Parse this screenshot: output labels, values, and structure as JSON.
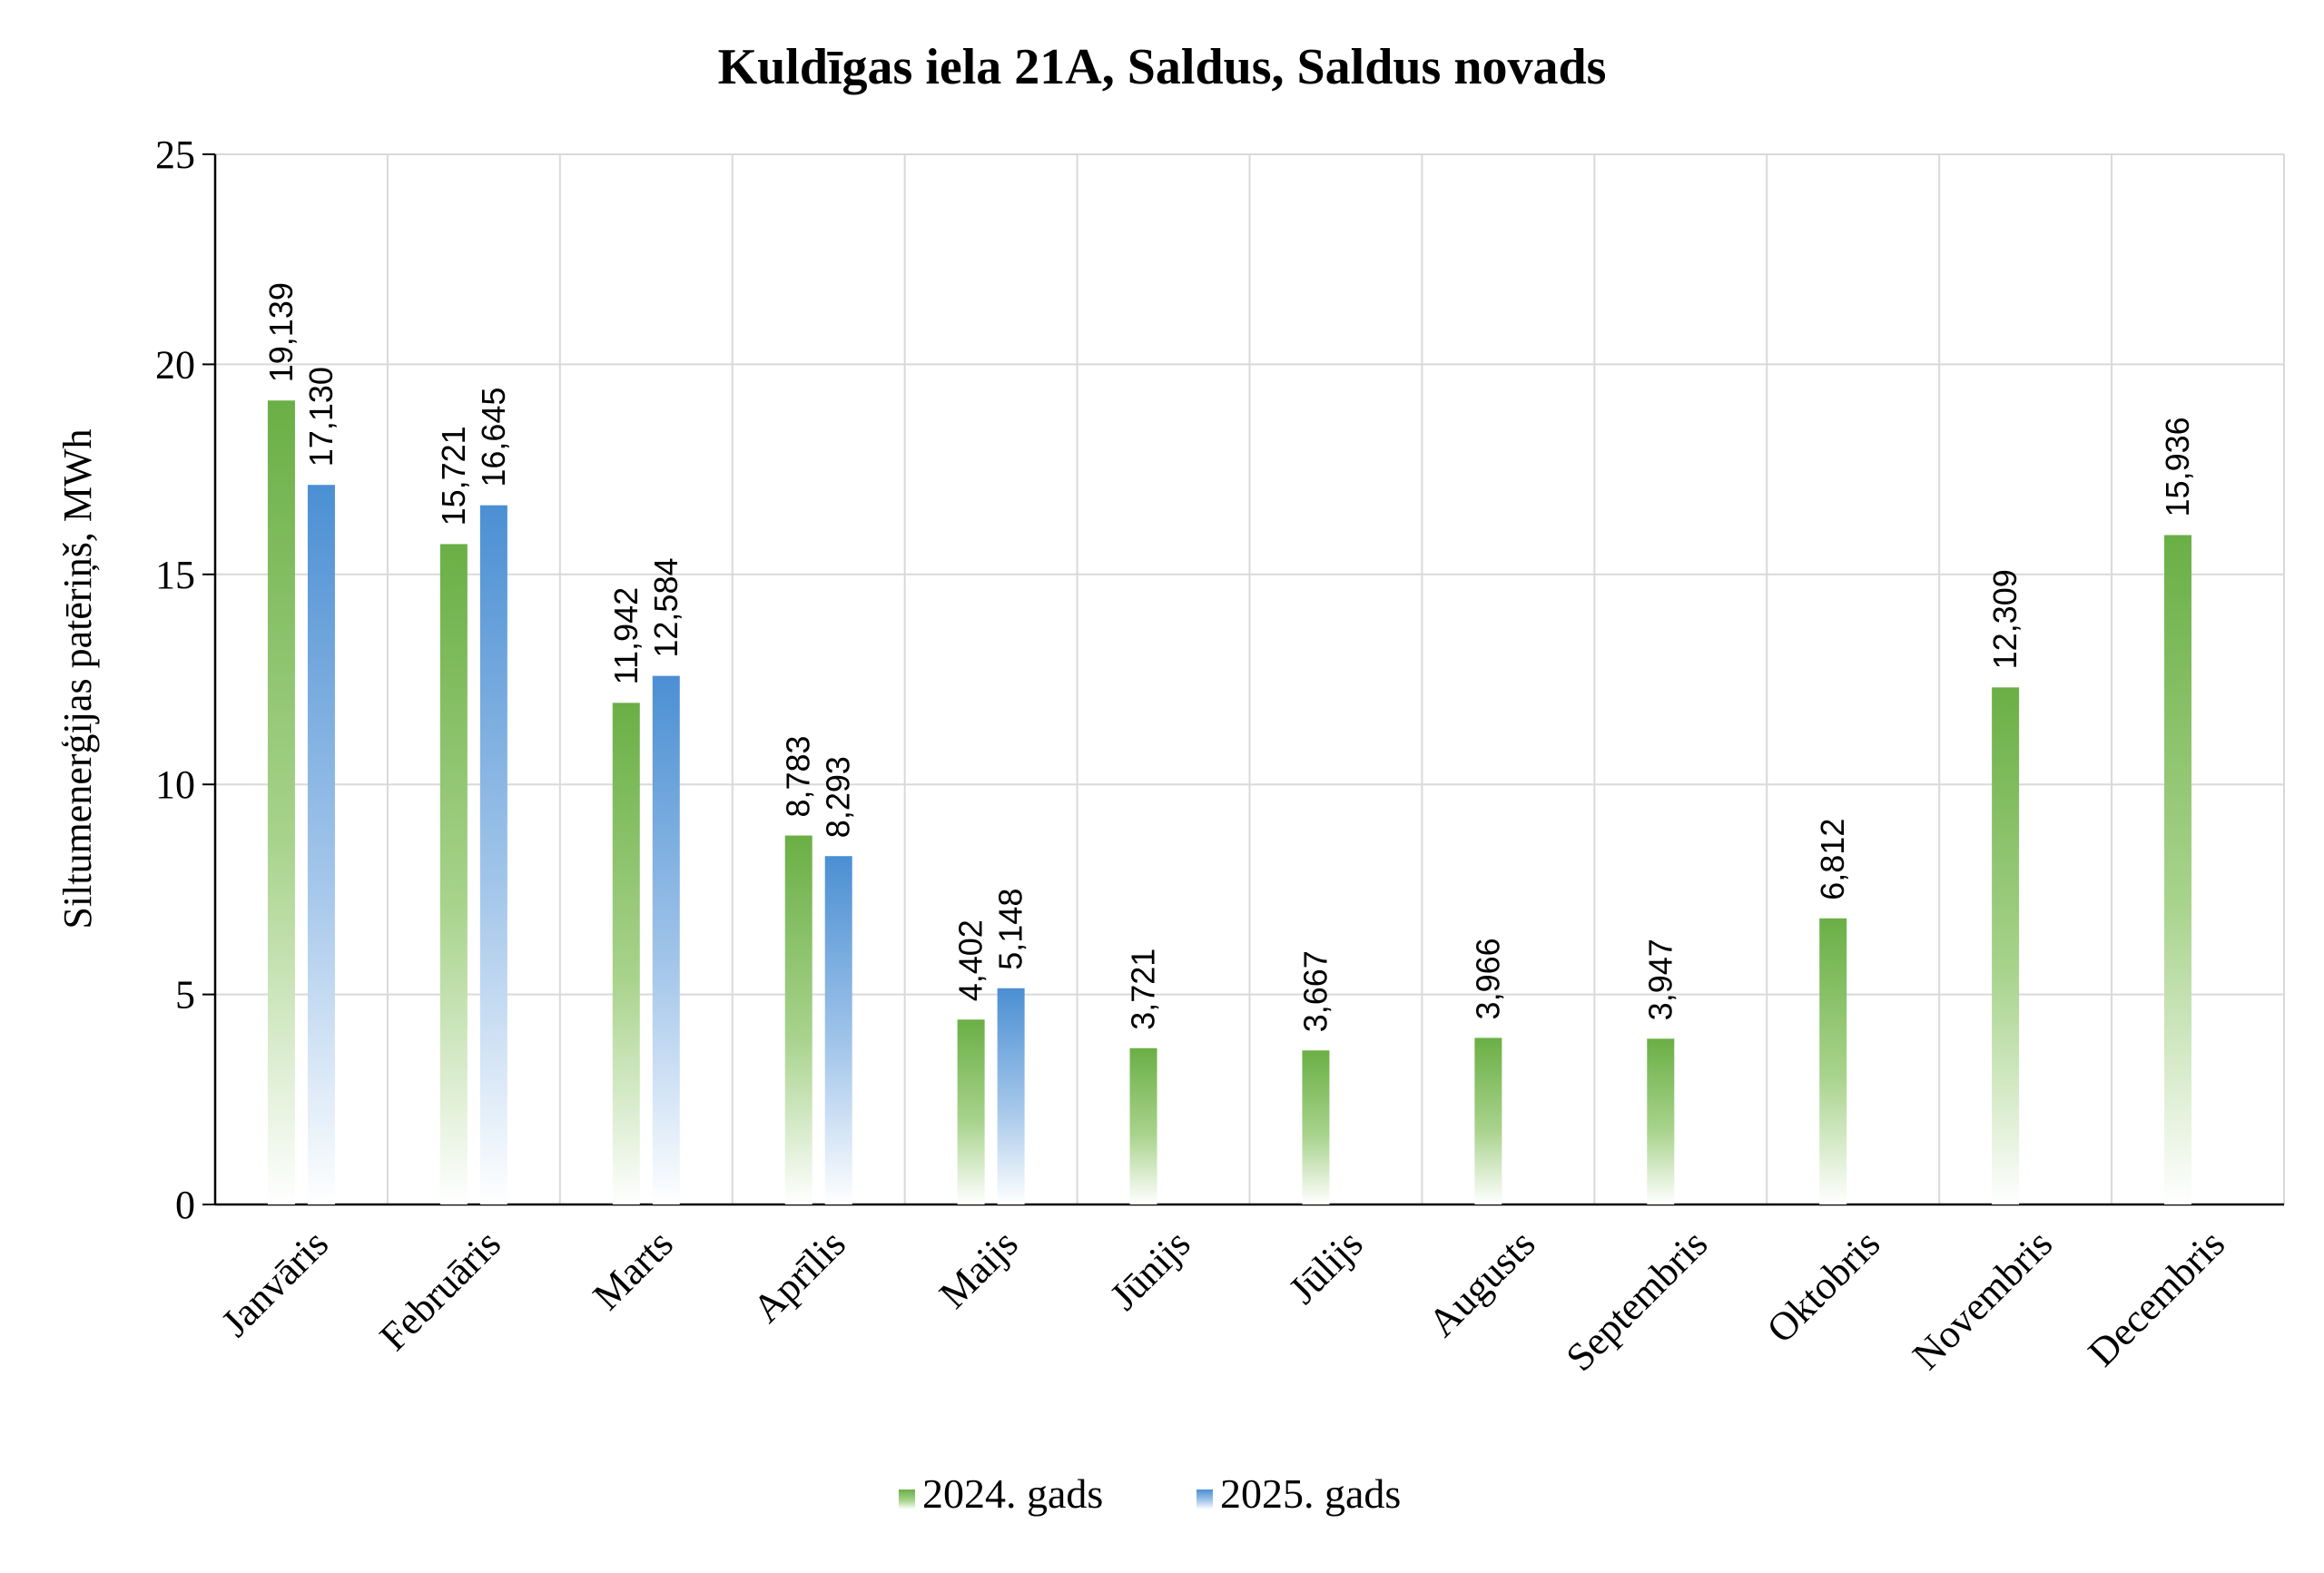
{
  "chart_data": {
    "type": "bar",
    "title": "Kuldīgas iela 21A, Saldus, Saldus novads",
    "xlabel": "",
    "ylabel": "Siltumenerģijas patēriņš, MWh",
    "ylim": [
      0,
      25
    ],
    "yticks": [
      "0",
      "5",
      "10",
      "15",
      "20",
      "25"
    ],
    "ytick_values": [
      0,
      5,
      10,
      15,
      20,
      25
    ],
    "grid": true,
    "legend_position": "bottom",
    "categories": [
      "Janvāris",
      "Februāris",
      "Marts",
      "Aprīlis",
      "Maijs",
      "Jūnijs",
      "Jūlijs",
      "Augusts",
      "Septembris",
      "Oktobris",
      "Novembris",
      "Decembris"
    ],
    "series": [
      {
        "name": "2024. gads",
        "color": "#6aaf45",
        "values": [
          19.139,
          15.721,
          11.942,
          8.783,
          4.402,
          3.721,
          3.667,
          3.966,
          3.947,
          6.812,
          12.309,
          15.936
        ],
        "labels": [
          "19,139",
          "15,721",
          "11,942",
          "8,783",
          "4,402",
          "3,721",
          "3,667",
          "3,966",
          "3,947",
          "6,812",
          "12,309",
          "15,936"
        ]
      },
      {
        "name": "2025. gads",
        "color": "#4b8fd3",
        "values": [
          17.13,
          16.645,
          12.584,
          8.293,
          5.148,
          null,
          null,
          null,
          null,
          null,
          null,
          null
        ],
        "labels": [
          "17,130",
          "16,645",
          "12,584",
          "8,293",
          "5,148",
          "",
          "",
          "",
          "",
          "",
          "",
          ""
        ]
      }
    ]
  }
}
